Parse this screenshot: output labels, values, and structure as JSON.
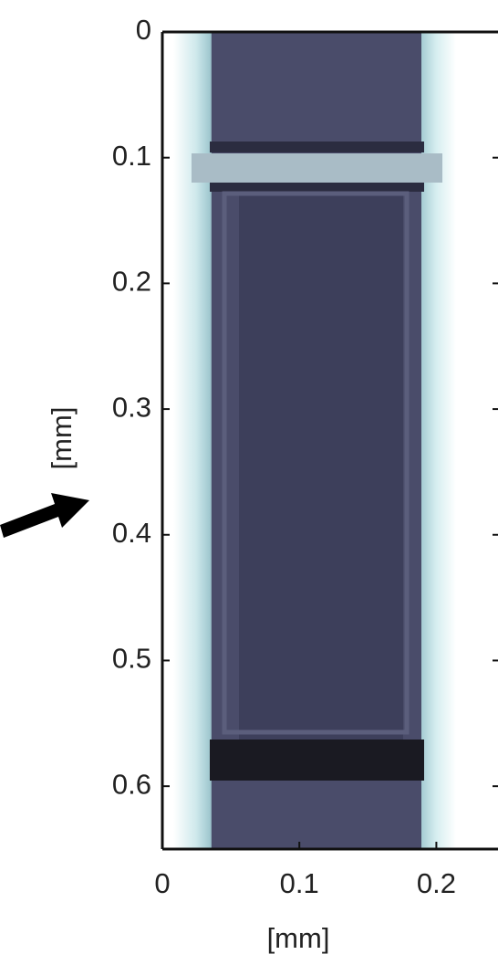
{
  "chart_data": {
    "type": "image",
    "xlabel": "[mm]",
    "ylabel": "[mm]",
    "xlim": [
      0,
      0.245
    ],
    "xticks": [
      0,
      0.1,
      0.2
    ],
    "ylim": [
      0,
      0.65
    ],
    "yticks": [
      0,
      0.1,
      0.2,
      0.3,
      0.4,
      0.5,
      0.6
    ],
    "yreverse": true
  }
}
